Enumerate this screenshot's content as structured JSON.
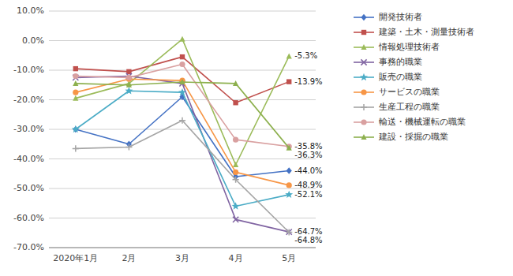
{
  "chart_data": {
    "type": "line",
    "categories": [
      "2020年1月",
      "2月",
      "3月",
      "4月",
      "5月"
    ],
    "series": [
      {
        "name": "開発技術者",
        "color": "#4472c4",
        "marker": "diamond",
        "values": [
          -30.0,
          -35.0,
          -19.0,
          -46.0,
          -44.0
        ]
      },
      {
        "name": "建築・土木・測量技術者",
        "color": "#c0504d",
        "marker": "square",
        "values": [
          -9.5,
          -10.5,
          -5.5,
          -21.0,
          -13.9
        ]
      },
      {
        "name": "情報処理技術者",
        "color": "#9bbb59",
        "marker": "triangle",
        "values": [
          -19.5,
          -14.5,
          0.5,
          -42.0,
          -5.3
        ]
      },
      {
        "name": "事務的職業",
        "color": "#8064a2",
        "marker": "x",
        "values": [
          -12.5,
          -12.0,
          -14.5,
          -60.5,
          -64.7
        ]
      },
      {
        "name": "販売の職業",
        "color": "#4bacc6",
        "marker": "star",
        "values": [
          -30.0,
          -17.0,
          -17.5,
          -56.0,
          -52.1
        ]
      },
      {
        "name": "サービスの職業",
        "color": "#f79646",
        "marker": "circle",
        "values": [
          -17.5,
          -13.0,
          -13.5,
          -44.5,
          -48.9
        ]
      },
      {
        "name": "生産工程の職業",
        "color": "#a5a5a5",
        "marker": "plus",
        "values": [
          -36.5,
          -36.0,
          -27.0,
          -47.0,
          -64.8
        ]
      },
      {
        "name": "輸送・機械運転の職業",
        "color": "#d9a0a0",
        "marker": "circle",
        "values": [
          -12.0,
          -12.5,
          -8.0,
          -33.5,
          -35.8
        ]
      },
      {
        "name": "建設・採掘の職業",
        "color": "#8db04e",
        "marker": "triangle",
        "values": [
          -14.5,
          -15.0,
          -14.0,
          -14.5,
          -36.3
        ]
      }
    ],
    "annotations": [
      {
        "text": "-44.0%",
        "x": "5月",
        "y": -44.0
      },
      {
        "text": "-13.9%",
        "x": "5月",
        "y": -13.9
      },
      {
        "text": "-5.3%",
        "x": "5月",
        "y": -5.3
      },
      {
        "text": "-64.7%",
        "x": "5月",
        "y": -64.7
      },
      {
        "text": "-52.1%",
        "x": "5月",
        "y": -52.1
      },
      {
        "text": "-48.9%",
        "x": "5月",
        "y": -48.9
      },
      {
        "text": "-64.8%",
        "x": "5月",
        "y": -64.8
      },
      {
        "text": "-35.8%",
        "x": "5月",
        "y": -35.8
      },
      {
        "text": "-36.3%",
        "x": "5月",
        "y": -36.3
      }
    ],
    "ylim": [
      -70.0,
      10.0
    ],
    "yticks": [
      {
        "value": 10.0,
        "label": "10.0%"
      },
      {
        "value": 0.0,
        "label": "0.0%"
      },
      {
        "value": -10.0,
        "label": "-10.0%"
      },
      {
        "value": -20.0,
        "label": "-20.0%"
      },
      {
        "value": -30.0,
        "label": "-30.0%"
      },
      {
        "value": -40.0,
        "label": "-40.0%"
      },
      {
        "value": -50.0,
        "label": "-50.0%"
      },
      {
        "value": -60.0,
        "label": "-60.0%"
      },
      {
        "value": -70.0,
        "label": "-70.0%"
      }
    ],
    "grid": true,
    "legend": "right"
  }
}
